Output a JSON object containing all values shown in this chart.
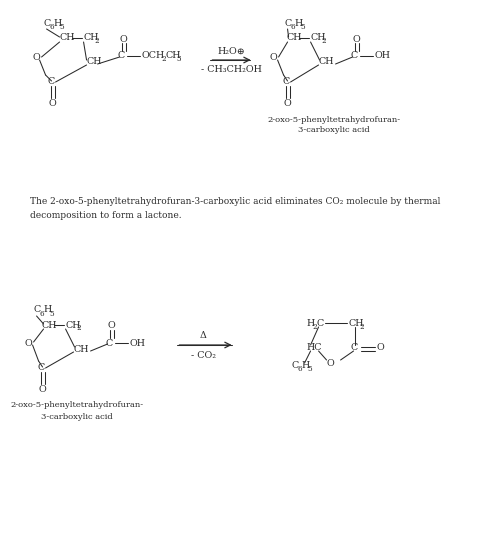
{
  "bg": "#ffffff",
  "fc": "#2a2a2a",
  "fs": 6.8,
  "fs_sub": 5.2,
  "r1_above": "H₂O⊕",
  "r1_below": "- CH₃CH₂OH",
  "r2_above": "Δ",
  "r2_below": "- CO₂",
  "prod1_line1": "2-oxo-5-phenyltetrahydrofuran-",
  "prod1_line2": "3-carboxylic acid",
  "prod2_line1": "2-oxo-5-phenyltetrahydrofuran-",
  "prod2_line2": "3-carboxylic acid",
  "para1": "The 2-oxo-5-phenyltetrahydrofuran-3-carboxylic acid eliminates CO₂ molecule by thermal",
  "para2": "decomposition to form a lactone."
}
